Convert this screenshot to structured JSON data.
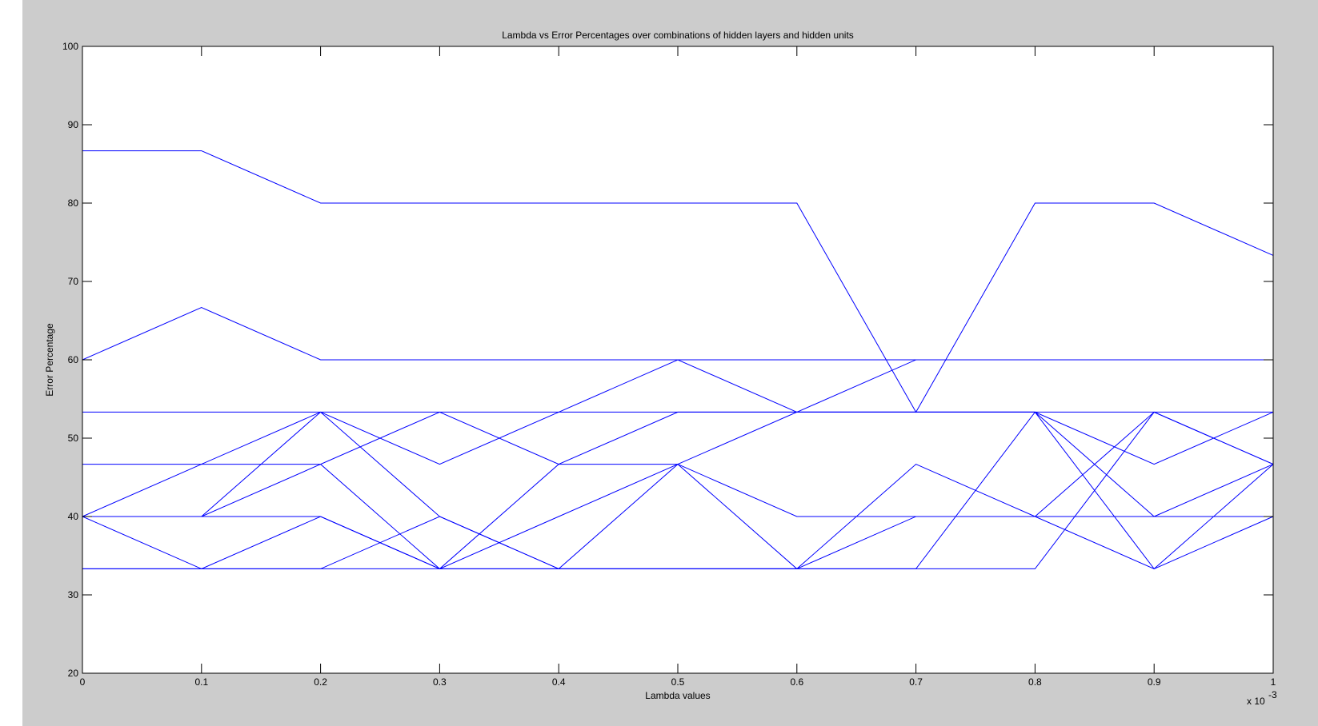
{
  "chart_data": {
    "type": "line",
    "title": "Lambda vs Error Percentages over combinations of hidden layers and hidden units",
    "xlabel": "Lambda values",
    "ylabel": "Error Percentage",
    "x_multiplier_label": "x 10",
    "x_multiplier_exponent": "-3",
    "xlim": [
      0,
      1
    ],
    "ylim": [
      20,
      100
    ],
    "x_ticks": [
      "0",
      "0.1",
      "0.2",
      "0.3",
      "0.4",
      "0.5",
      "0.6",
      "0.7",
      "0.8",
      "0.9",
      "1"
    ],
    "y_ticks": [
      "20",
      "30",
      "40",
      "50",
      "60",
      "70",
      "80",
      "90",
      "100"
    ],
    "x": [
      0,
      0.1,
      0.2,
      0.3,
      0.4,
      0.5,
      0.6,
      0.7,
      0.8,
      0.9,
      1.0
    ],
    "series_color": "#0000ff",
    "grid": false,
    "series": [
      {
        "values": [
          100,
          100,
          100,
          100,
          100,
          100,
          100,
          100,
          100,
          100,
          100
        ]
      },
      {
        "values": [
          86.67,
          86.67,
          80,
          80,
          80,
          80,
          80,
          53.33,
          80,
          80,
          73.33
        ]
      },
      {
        "values": [
          60,
          66.67,
          60,
          60,
          60,
          60,
          60,
          60,
          60,
          60,
          60
        ]
      },
      {
        "values": [
          40,
          46.67,
          53.33,
          46.67,
          53.33,
          60,
          53.33,
          60,
          60,
          60,
          60
        ]
      },
      {
        "values": [
          53.33,
          53.33,
          53.33,
          53.33,
          53.33,
          53.33,
          53.33,
          53.33,
          53.33,
          53.33,
          53.33
        ]
      },
      {
        "values": [
          40,
          40,
          53.33,
          40,
          33.33,
          46.67,
          40,
          40,
          40,
          53.33,
          46.67
        ]
      },
      {
        "values": [
          46.67,
          46.67,
          46.67,
          53.33,
          46.67,
          46.67,
          33.33,
          46.67,
          40,
          40,
          40
        ]
      },
      {
        "values": [
          40,
          40,
          46.67,
          33.33,
          46.67,
          53.33,
          53.33,
          53.33,
          53.33,
          46.67,
          53.33
        ]
      },
      {
        "values": [
          40,
          40,
          40,
          33.33,
          40,
          46.67,
          53.33,
          53.33,
          53.33,
          40,
          46.67
        ]
      },
      {
        "values": [
          40,
          33.33,
          33.33,
          40,
          33.33,
          33.33,
          33.33,
          40,
          40,
          33.33,
          40
        ]
      },
      {
        "values": [
          33.33,
          33.33,
          40,
          33.33,
          33.33,
          33.33,
          33.33,
          33.33,
          53.33,
          33.33,
          46.67
        ]
      },
      {
        "values": [
          33.33,
          33.33,
          33.33,
          33.33,
          33.33,
          33.33,
          33.33,
          33.33,
          33.33,
          53.33,
          46.67
        ]
      }
    ]
  }
}
